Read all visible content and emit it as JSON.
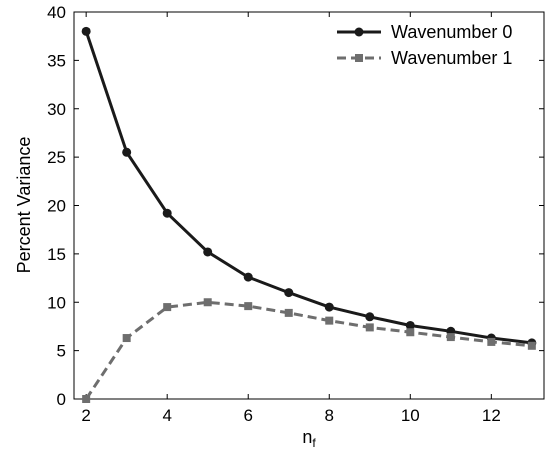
{
  "chart_data": {
    "type": "line",
    "title": "",
    "xlabel": "n",
    "xlabel_subscript": "f",
    "ylabel": "Percent Variance",
    "xlim": [
      1.7,
      13.3
    ],
    "ylim": [
      0,
      40
    ],
    "xticks": [
      2,
      4,
      6,
      8,
      10,
      12
    ],
    "yticks": [
      0,
      5,
      10,
      15,
      20,
      25,
      30,
      35,
      40
    ],
    "grid": false,
    "legend_position": "top-right",
    "x": [
      2,
      3,
      4,
      5,
      6,
      7,
      8,
      9,
      10,
      11,
      12,
      13
    ],
    "series": [
      {
        "name": "Wavenumber 0",
        "color": "#1a1a1a",
        "line_style": "solid",
        "marker": "circle",
        "values": [
          38.0,
          25.5,
          19.2,
          15.2,
          12.6,
          11.0,
          9.5,
          8.5,
          7.6,
          7.0,
          6.3,
          5.8
        ]
      },
      {
        "name": "Wavenumber 1",
        "color": "#6e6e6e",
        "line_style": "dashed",
        "marker": "square",
        "values": [
          0.0,
          6.3,
          9.5,
          10.0,
          9.6,
          8.9,
          8.1,
          7.4,
          6.9,
          6.4,
          5.9,
          5.5
        ]
      }
    ]
  }
}
